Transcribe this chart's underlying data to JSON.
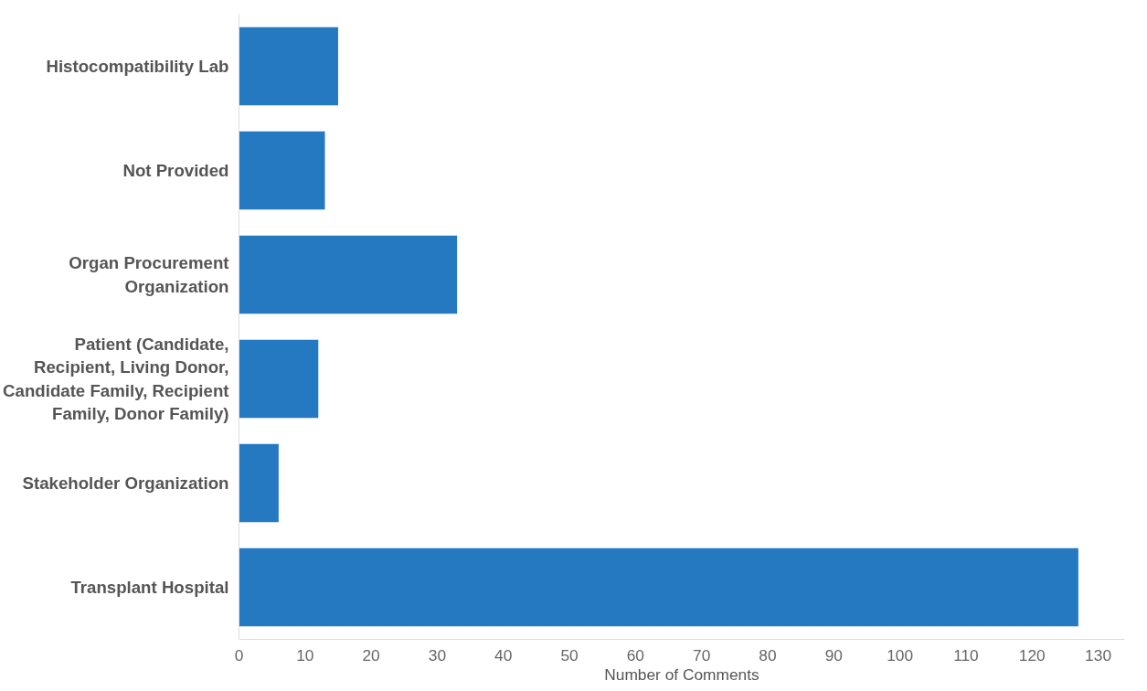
{
  "chart_data": {
    "type": "bar",
    "orientation": "horizontal",
    "xlabel": "Number of Comments",
    "categories": [
      "Histocompatibility Lab",
      "Not Provided",
      "Organ Procurement Organization",
      "Patient (Candidate, Recipient, Living Donor, Candidate Family, Recipient Family, Donor Family)",
      "Stakeholder Organization",
      "Transplant Hospital"
    ],
    "values": [
      15,
      13,
      33,
      12,
      6,
      127
    ],
    "color": "#2479c0",
    "xlim": [
      0,
      134
    ],
    "xticks": [
      0,
      10,
      20,
      30,
      40,
      50,
      60,
      70,
      80,
      90,
      100,
      110,
      120,
      130
    ],
    "grid": false
  }
}
